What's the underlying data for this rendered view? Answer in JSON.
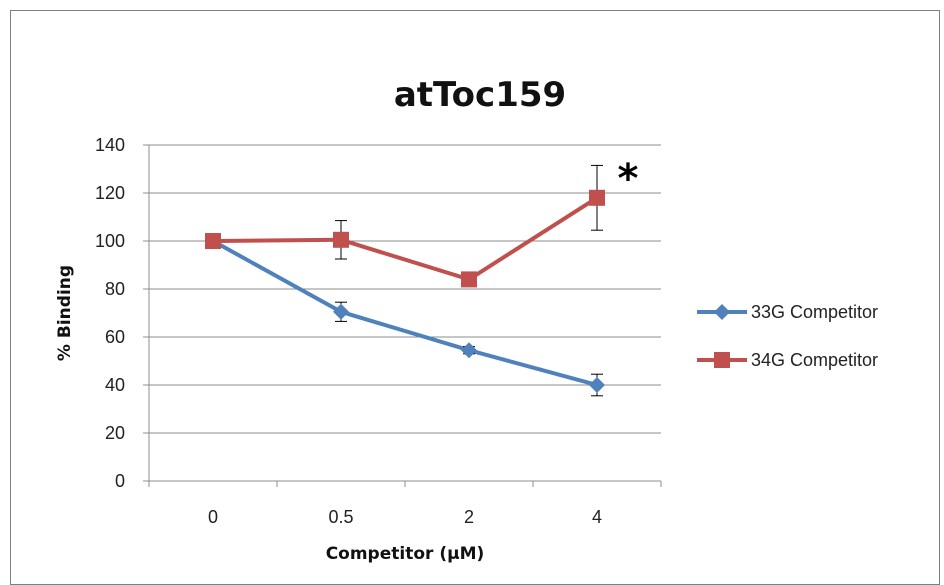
{
  "chart_data": {
    "type": "line",
    "title": "atToc159",
    "xlabel": "Competitor (μM)",
    "ylabel": "% Binding",
    "categories": [
      "0",
      "0.5",
      "2",
      "4"
    ],
    "ylim": [
      0,
      140
    ],
    "yticks": [
      0,
      20,
      40,
      60,
      80,
      100,
      120,
      140
    ],
    "grid": true,
    "legend_position": "right",
    "series": [
      {
        "name": "33G Competitor",
        "color": "#4f81bd",
        "marker": "diamond",
        "values": [
          100,
          70.5,
          54.5,
          40
        ],
        "errors": [
          0,
          4,
          1.5,
          4.5
        ]
      },
      {
        "name": "34G Competitor",
        "color": "#c0504d",
        "marker": "square",
        "values": [
          100,
          100.5,
          84,
          118
        ],
        "errors": [
          0,
          8,
          0,
          13.5
        ]
      }
    ],
    "annotation": {
      "text": "*",
      "category": "4",
      "y": 132
    }
  }
}
